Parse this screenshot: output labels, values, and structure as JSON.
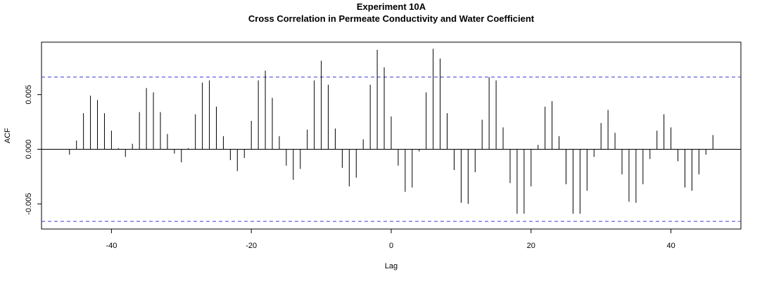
{
  "chart_data": {
    "type": "bar",
    "title": "Experiment  10A",
    "subtitle": "Cross Correlation in Permeate Conductivity and Water Coefficient",
    "xlabel": "Lag",
    "ylabel": "ACF",
    "xlim": [
      -50,
      50
    ],
    "ylim": [
      -0.0073,
      0.0098
    ],
    "x_ticks": [
      -40,
      -20,
      0,
      20,
      40
    ],
    "x_tick_labels": [
      "-40",
      "-20",
      "0",
      "20",
      "40"
    ],
    "y_ticks": [
      -0.005,
      0.0,
      0.005
    ],
    "y_tick_labels": [
      "-0.005",
      "0.000",
      "0.005"
    ],
    "confidence_limit": 0.0066,
    "grid": false,
    "colors": {
      "bars": "#000000",
      "confidence_lines": "#3a3ad6",
      "zero_line": "#000000"
    },
    "x": [
      -46,
      -45,
      -44,
      -43,
      -42,
      -41,
      -40,
      -39,
      -38,
      -37,
      -36,
      -35,
      -34,
      -33,
      -32,
      -31,
      -30,
      -29,
      -28,
      -27,
      -26,
      -25,
      -24,
      -23,
      -22,
      -21,
      -20,
      -19,
      -18,
      -17,
      -16,
      -15,
      -14,
      -13,
      -12,
      -11,
      -10,
      -9,
      -8,
      -7,
      -6,
      -5,
      -4,
      -3,
      -2,
      -1,
      0,
      1,
      2,
      3,
      4,
      5,
      6,
      7,
      8,
      9,
      10,
      11,
      12,
      13,
      14,
      15,
      16,
      17,
      18,
      19,
      20,
      21,
      22,
      23,
      24,
      25,
      26,
      27,
      28,
      29,
      30,
      31,
      32,
      33,
      34,
      35,
      36,
      37,
      38,
      39,
      40,
      41,
      42,
      43,
      44,
      45,
      46
    ],
    "values": [
      -0.0005,
      0.0008,
      0.0033,
      0.0049,
      0.0045,
      0.0033,
      0.0017,
      0.0001,
      -0.0007,
      0.0005,
      0.0034,
      0.0056,
      0.0052,
      0.0034,
      0.0014,
      -0.0004,
      -0.0012,
      0.0001,
      0.0032,
      0.0061,
      0.0063,
      0.0039,
      0.0012,
      -0.001,
      -0.002,
      -0.0008,
      0.0026,
      0.0063,
      0.0072,
      0.0047,
      0.0012,
      -0.0015,
      -0.0028,
      -0.0018,
      0.0018,
      0.0063,
      0.0081,
      0.0059,
      0.0019,
      -0.0017,
      -0.0034,
      -0.0026,
      0.0009,
      0.0059,
      0.0091,
      0.0075,
      0.003,
      -0.0015,
      -0.0039,
      -0.0035,
      -0.0002,
      0.0052,
      0.0092,
      0.0083,
      0.0033,
      -0.0019,
      -0.0049,
      -0.005,
      -0.0021,
      0.0027,
      0.0066,
      0.0063,
      0.002,
      -0.0031,
      -0.0059,
      -0.0059,
      -0.0034,
      0.0004,
      0.0039,
      0.0044,
      0.0012,
      -0.0032,
      -0.0059,
      -0.0059,
      -0.0038,
      -0.0007,
      0.0024,
      0.0036,
      0.0015,
      -0.0023,
      -0.0048,
      -0.0049,
      -0.0032,
      -0.0009,
      0.0017,
      0.0032,
      0.002,
      -0.0011,
      -0.0035,
      -0.0038,
      -0.0023,
      -0.0005,
      0.0013
    ]
  }
}
